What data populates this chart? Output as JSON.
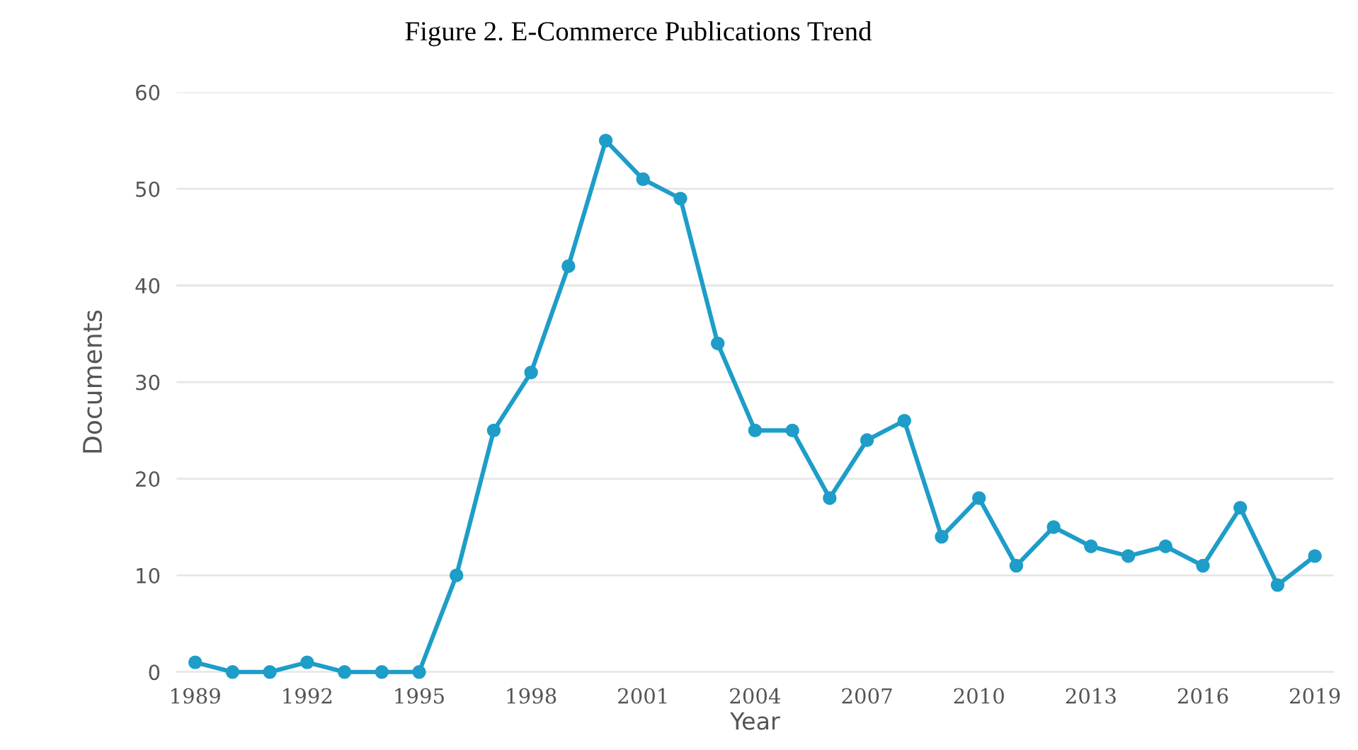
{
  "chart_data": {
    "type": "line",
    "title": "Figure 2. E-Commerce Publications Trend",
    "xlabel": "Year",
    "ylabel": "Documents",
    "x": [
      1989,
      1990,
      1991,
      1992,
      1993,
      1994,
      1995,
      1996,
      1997,
      1998,
      1999,
      2000,
      2001,
      2002,
      2003,
      2004,
      2005,
      2006,
      2007,
      2008,
      2009,
      2010,
      2011,
      2012,
      2013,
      2014,
      2015,
      2016,
      2017,
      2018,
      2019
    ],
    "values": [
      1,
      0,
      0,
      1,
      0,
      0,
      0,
      10,
      25,
      31,
      42,
      55,
      51,
      49,
      34,
      25,
      25,
      18,
      24,
      26,
      14,
      18,
      11,
      15,
      13,
      12,
      13,
      11,
      17,
      9,
      12
    ],
    "color": "#1e9dc8",
    "xlim": [
      1988.5,
      2019.5
    ],
    "xticks": [
      1989,
      1992,
      1995,
      1998,
      2001,
      2004,
      2007,
      2010,
      2013,
      2016,
      2019
    ],
    "ylim": [
      0,
      60
    ],
    "yticks": [
      0,
      10,
      20,
      30,
      40,
      50,
      60
    ],
    "grid": "y",
    "marker": "circle",
    "line_style": "solid",
    "legend": false
  }
}
